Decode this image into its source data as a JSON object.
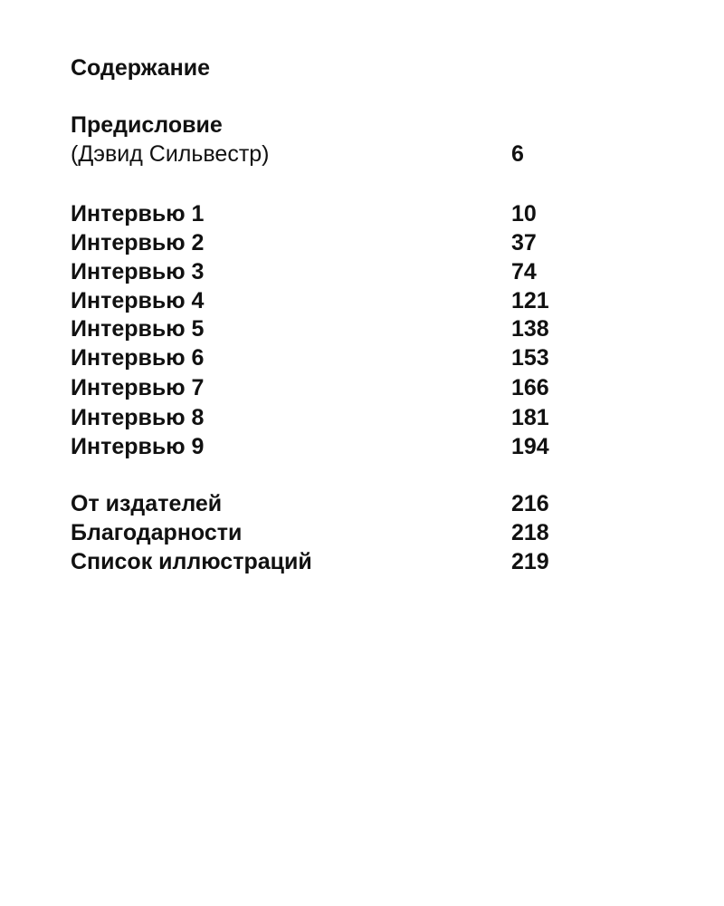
{
  "title": "Содержание",
  "preface": {
    "label": "Предисловие",
    "author": "(Дэвид Сильвестр)",
    "page": "6"
  },
  "interviews": [
    {
      "label": "Интервью 1",
      "page": "10"
    },
    {
      "label": "Интервью 2",
      "page": "37"
    },
    {
      "label": "Интервью 3",
      "page": "74"
    },
    {
      "label": "Интервью 4",
      "page": "121"
    },
    {
      "label": "Интервью 5",
      "page": "138"
    },
    {
      "label": "Интервью 6",
      "page": "153"
    },
    {
      "label": "Интервью 7",
      "page": "166"
    },
    {
      "label": "Интервью 8",
      "page": "181"
    },
    {
      "label": "Интервью 9",
      "page": "194"
    }
  ],
  "appendix": [
    {
      "label": "От издателей",
      "page": "216"
    },
    {
      "label": "Благодарности",
      "page": "218"
    },
    {
      "label": "Список иллюстраций",
      "page": "219"
    }
  ]
}
